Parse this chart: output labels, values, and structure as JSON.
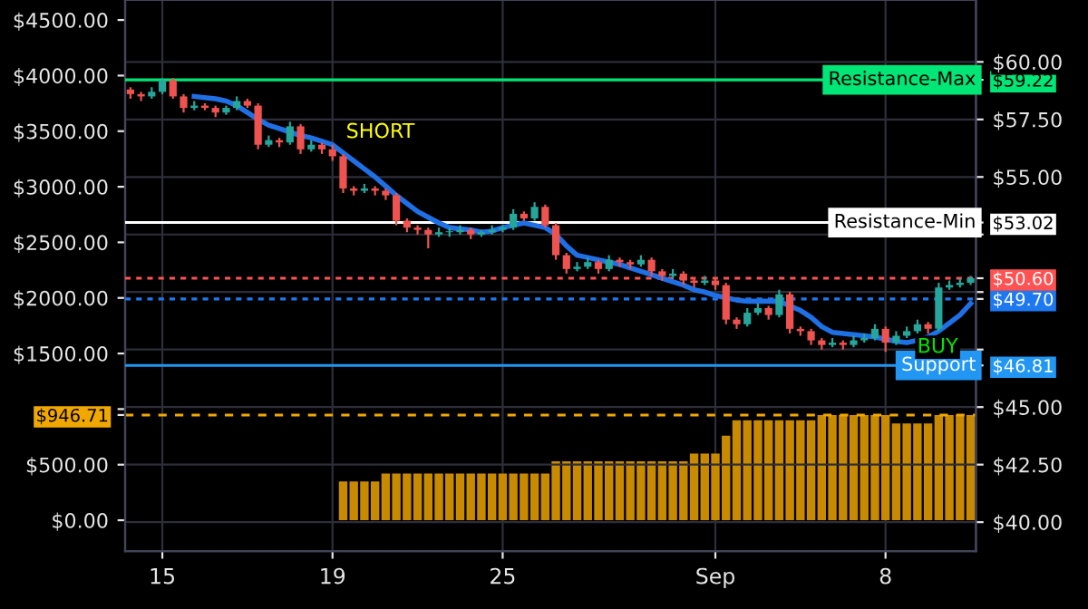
{
  "chart_data": {
    "type": "candlestick",
    "categories": [
      null,
      null,
      null,
      "15",
      null,
      null,
      null,
      null,
      null,
      null,
      null,
      null,
      null,
      null,
      null,
      null,
      null,
      null,
      null,
      "19",
      null,
      null,
      null,
      null,
      null,
      null,
      null,
      null,
      null,
      null,
      null,
      null,
      null,
      null,
      null,
      "25",
      null,
      null,
      null,
      null,
      null,
      null,
      null,
      null,
      null,
      null,
      null,
      null,
      null,
      null,
      null,
      null,
      null,
      null,
      null,
      "Sep",
      null,
      null,
      null,
      null,
      null,
      null,
      null,
      null,
      null,
      null,
      null,
      null,
      null,
      null,
      null,
      "8",
      null,
      null,
      null,
      null,
      null,
      null,
      null,
      null
    ],
    "series": [
      {
        "type": "bar",
        "color": "#c88a00",
        "values": [
          0,
          0,
          0,
          0,
          0,
          0,
          0,
          0,
          0,
          0,
          0,
          0,
          0,
          0,
          0,
          0,
          0,
          0,
          0,
          0,
          350,
          350,
          350,
          350,
          420,
          420,
          420,
          420,
          420,
          420,
          420,
          420,
          420,
          420,
          420,
          420,
          420,
          420,
          420,
          420,
          530,
          530,
          530,
          530,
          530,
          530,
          530,
          530,
          530,
          530,
          530,
          530,
          530,
          600,
          600,
          600,
          760,
          900,
          900,
          900,
          900,
          900,
          900,
          900,
          900,
          946.71,
          946.71,
          946.71,
          946.71,
          946.71,
          946.71,
          946.71,
          870,
          870,
          870,
          870,
          946.71,
          946.71,
          946.71,
          946.71
        ]
      },
      {
        "axis": "y2",
        "ohlc": [
          [
            58.8,
            58.9,
            58.4,
            58.6
          ],
          [
            58.6,
            58.7,
            58.3,
            58.5
          ],
          [
            58.5,
            58.9,
            58.4,
            58.7
          ],
          [
            58.7,
            59.3,
            58.6,
            59.2
          ],
          [
            59.2,
            59.3,
            58.4,
            58.5
          ],
          [
            58.5,
            58.6,
            57.8,
            58.0
          ],
          [
            58.0,
            58.3,
            57.9,
            58.1
          ],
          [
            58.1,
            58.2,
            57.9,
            58.0
          ],
          [
            58.0,
            58.1,
            57.6,
            57.8
          ],
          [
            57.8,
            58.1,
            57.7,
            58.0
          ],
          [
            58.0,
            58.5,
            57.9,
            58.3
          ],
          [
            58.3,
            58.4,
            58.0,
            58.1
          ],
          [
            58.1,
            58.2,
            56.2,
            56.4
          ],
          [
            56.4,
            56.8,
            56.3,
            56.6
          ],
          [
            56.6,
            56.7,
            56.3,
            56.5
          ],
          [
            56.5,
            57.4,
            56.4,
            57.2
          ],
          [
            57.2,
            57.3,
            56.0,
            56.2
          ],
          [
            56.2,
            56.6,
            56.1,
            56.4
          ],
          [
            56.4,
            56.5,
            56.0,
            56.2
          ],
          [
            56.2,
            56.4,
            55.7,
            55.9
          ],
          [
            55.9,
            56.0,
            54.3,
            54.5
          ],
          [
            54.5,
            54.6,
            54.2,
            54.4
          ],
          [
            54.4,
            54.7,
            54.3,
            54.5
          ],
          [
            54.5,
            54.6,
            54.2,
            54.4
          ],
          [
            54.4,
            54.5,
            54.0,
            54.2
          ],
          [
            54.2,
            54.3,
            52.9,
            53.1
          ],
          [
            53.1,
            53.2,
            52.6,
            52.8
          ],
          [
            52.8,
            52.9,
            52.5,
            52.7
          ],
          [
            52.7,
            52.8,
            51.9,
            52.5
          ],
          [
            52.5,
            52.8,
            52.4,
            52.6
          ],
          [
            52.6,
            52.8,
            52.4,
            52.6
          ],
          [
            52.6,
            52.9,
            52.5,
            52.7
          ],
          [
            52.7,
            52.8,
            52.3,
            52.5
          ],
          [
            52.5,
            52.7,
            52.4,
            52.6
          ],
          [
            52.6,
            52.9,
            52.5,
            52.7
          ],
          [
            52.7,
            52.9,
            52.6,
            52.8
          ],
          [
            52.8,
            53.6,
            52.7,
            53.4
          ],
          [
            53.4,
            53.5,
            53.1,
            53.2
          ],
          [
            53.2,
            53.9,
            53.1,
            53.7
          ],
          [
            53.7,
            53.8,
            52.8,
            52.9
          ],
          [
            52.9,
            53.0,
            51.4,
            51.6
          ],
          [
            51.6,
            51.7,
            50.8,
            51.0
          ],
          [
            51.0,
            51.3,
            50.9,
            51.1
          ],
          [
            51.1,
            51.5,
            51.0,
            51.3
          ],
          [
            51.3,
            51.4,
            50.8,
            51.0
          ],
          [
            51.0,
            51.6,
            50.9,
            51.4
          ],
          [
            51.4,
            51.5,
            51.1,
            51.3
          ],
          [
            51.3,
            51.4,
            51.0,
            51.2
          ],
          [
            51.2,
            51.6,
            51.1,
            51.4
          ],
          [
            51.4,
            51.5,
            50.7,
            50.9
          ],
          [
            50.9,
            51.0,
            50.5,
            50.7
          ],
          [
            50.7,
            51.0,
            50.6,
            50.8
          ],
          [
            50.8,
            50.9,
            50.3,
            50.5
          ],
          [
            50.5,
            50.6,
            50.2,
            50.4
          ],
          [
            50.4,
            50.7,
            50.3,
            50.5
          ],
          [
            50.5,
            50.6,
            50.1,
            50.3
          ],
          [
            50.3,
            50.4,
            48.6,
            48.8
          ],
          [
            48.8,
            48.9,
            48.4,
            48.6
          ],
          [
            48.6,
            49.3,
            48.5,
            49.1
          ],
          [
            49.1,
            49.5,
            49.0,
            49.3
          ],
          [
            49.3,
            49.4,
            48.8,
            49.0
          ],
          [
            49.0,
            50.1,
            48.9,
            49.9
          ],
          [
            49.9,
            50.0,
            48.2,
            48.4
          ],
          [
            48.4,
            48.5,
            48.1,
            48.3
          ],
          [
            48.3,
            48.4,
            47.7,
            47.9
          ],
          [
            47.9,
            48.0,
            47.5,
            47.7
          ],
          [
            47.7,
            48.0,
            47.6,
            47.8
          ],
          [
            47.8,
            47.9,
            47.5,
            47.7
          ],
          [
            47.7,
            48.1,
            47.6,
            47.9
          ],
          [
            47.9,
            48.2,
            47.8,
            48.0
          ],
          [
            48.0,
            48.6,
            47.9,
            48.4
          ],
          [
            48.4,
            48.5,
            47.4,
            47.8
          ],
          [
            47.8,
            48.3,
            47.7,
            48.1
          ],
          [
            48.1,
            48.5,
            48.0,
            48.3
          ],
          [
            48.3,
            48.8,
            48.2,
            48.6
          ],
          [
            48.6,
            48.7,
            48.2,
            48.4
          ],
          [
            48.4,
            50.4,
            48.3,
            50.2
          ],
          [
            50.2,
            50.5,
            50.1,
            50.3
          ],
          [
            50.3,
            50.6,
            50.2,
            50.4
          ],
          [
            50.4,
            50.7,
            50.3,
            50.6
          ]
        ]
      },
      {
        "type": "line",
        "axis": "y2",
        "color": "#1f6fe5",
        "values": [
          null,
          null,
          null,
          null,
          null,
          null,
          58.5,
          58.45,
          58.4,
          58.3,
          58.1,
          57.8,
          57.5,
          57.25,
          57.1,
          56.95,
          56.8,
          56.7,
          56.55,
          56.4,
          56.05,
          55.7,
          55.35,
          55.0,
          54.6,
          54.2,
          53.85,
          53.5,
          53.25,
          53.0,
          52.8,
          52.75,
          52.7,
          52.6,
          52.65,
          52.8,
          52.9,
          53.0,
          52.9,
          52.8,
          52.5,
          52.0,
          51.6,
          51.5,
          51.4,
          51.3,
          51.2,
          51.05,
          50.9,
          50.75,
          50.6,
          50.45,
          50.3,
          50.1,
          50.0,
          49.85,
          49.75,
          49.65,
          49.6,
          49.6,
          49.6,
          49.6,
          49.4,
          49.2,
          48.9,
          48.5,
          48.25,
          48.2,
          48.15,
          48.1,
          48.05,
          47.95,
          47.85,
          47.8,
          47.9,
          48.05,
          48.3,
          48.65,
          49.0,
          49.5
        ]
      }
    ],
    "ylim": [
      -278,
      4680
    ],
    "yticks": [
      {
        "value": 0,
        "label": "$0.00"
      },
      {
        "value": 500,
        "label": "$500.00"
      },
      {
        "value": 946.71,
        "label": "$946.71"
      },
      {
        "value": 1000,
        "label": null
      },
      {
        "value": 1500,
        "label": "$1500.00"
      },
      {
        "value": 2000,
        "label": "$2000.00"
      },
      {
        "value": 2500,
        "label": "$2500.00"
      },
      {
        "value": 3000,
        "label": "$3000.00"
      },
      {
        "value": 3500,
        "label": "$3500.00"
      },
      {
        "value": 4000,
        "label": "$4000.00"
      },
      {
        "value": 4500,
        "label": "$4500.00"
      }
    ],
    "y2lim": [
      38.74,
      62.69
    ],
    "y2ticks": [
      {
        "value": 40,
        "label": "$40.00"
      },
      {
        "value": 42.5,
        "label": "$42.50"
      },
      {
        "value": 45,
        "label": "$45.00"
      },
      {
        "value": 46.81,
        "label": "$46.81"
      },
      {
        "value": 47.5,
        "label": null
      },
      {
        "value": 49.7,
        "label": "$49.70"
      },
      {
        "value": 50,
        "label": null
      },
      {
        "value": 50.6,
        "label": "$50.60"
      },
      {
        "value": 52.5,
        "label": null
      },
      {
        "value": 53.02,
        "label": "$53.02"
      },
      {
        "value": 55,
        "label": "$55.00"
      },
      {
        "value": 57.5,
        "label": "$57.50"
      },
      {
        "value": 59.22,
        "label": "$59.22"
      },
      {
        "value": 60,
        "label": "$60.00"
      }
    ],
    "ref_lines": [
      {
        "axis": "y2",
        "value": 59.22,
        "label": "Resistance-Max",
        "color": "#00e676",
        "line_style": "solid"
      },
      {
        "axis": "y2",
        "value": 53.02,
        "label": "Resistance-Min",
        "color": "#ffffff",
        "line_style": "solid"
      },
      {
        "axis": "y2",
        "value": 50.6,
        "color": "#ff5252",
        "line_style": "dotted"
      },
      {
        "axis": "y2",
        "value": 49.7,
        "color": "#1e78f0",
        "line_style": "dotted"
      },
      {
        "axis": "y2",
        "value": 46.81,
        "label": "Support",
        "color": "#2196f3",
        "line_style": "solid"
      },
      {
        "axis": "y",
        "value": 946.71,
        "color": "#f0a800",
        "line_style": "dashed"
      }
    ],
    "annotations": [
      "SHORT",
      "BUY"
    ],
    "grid": true
  }
}
